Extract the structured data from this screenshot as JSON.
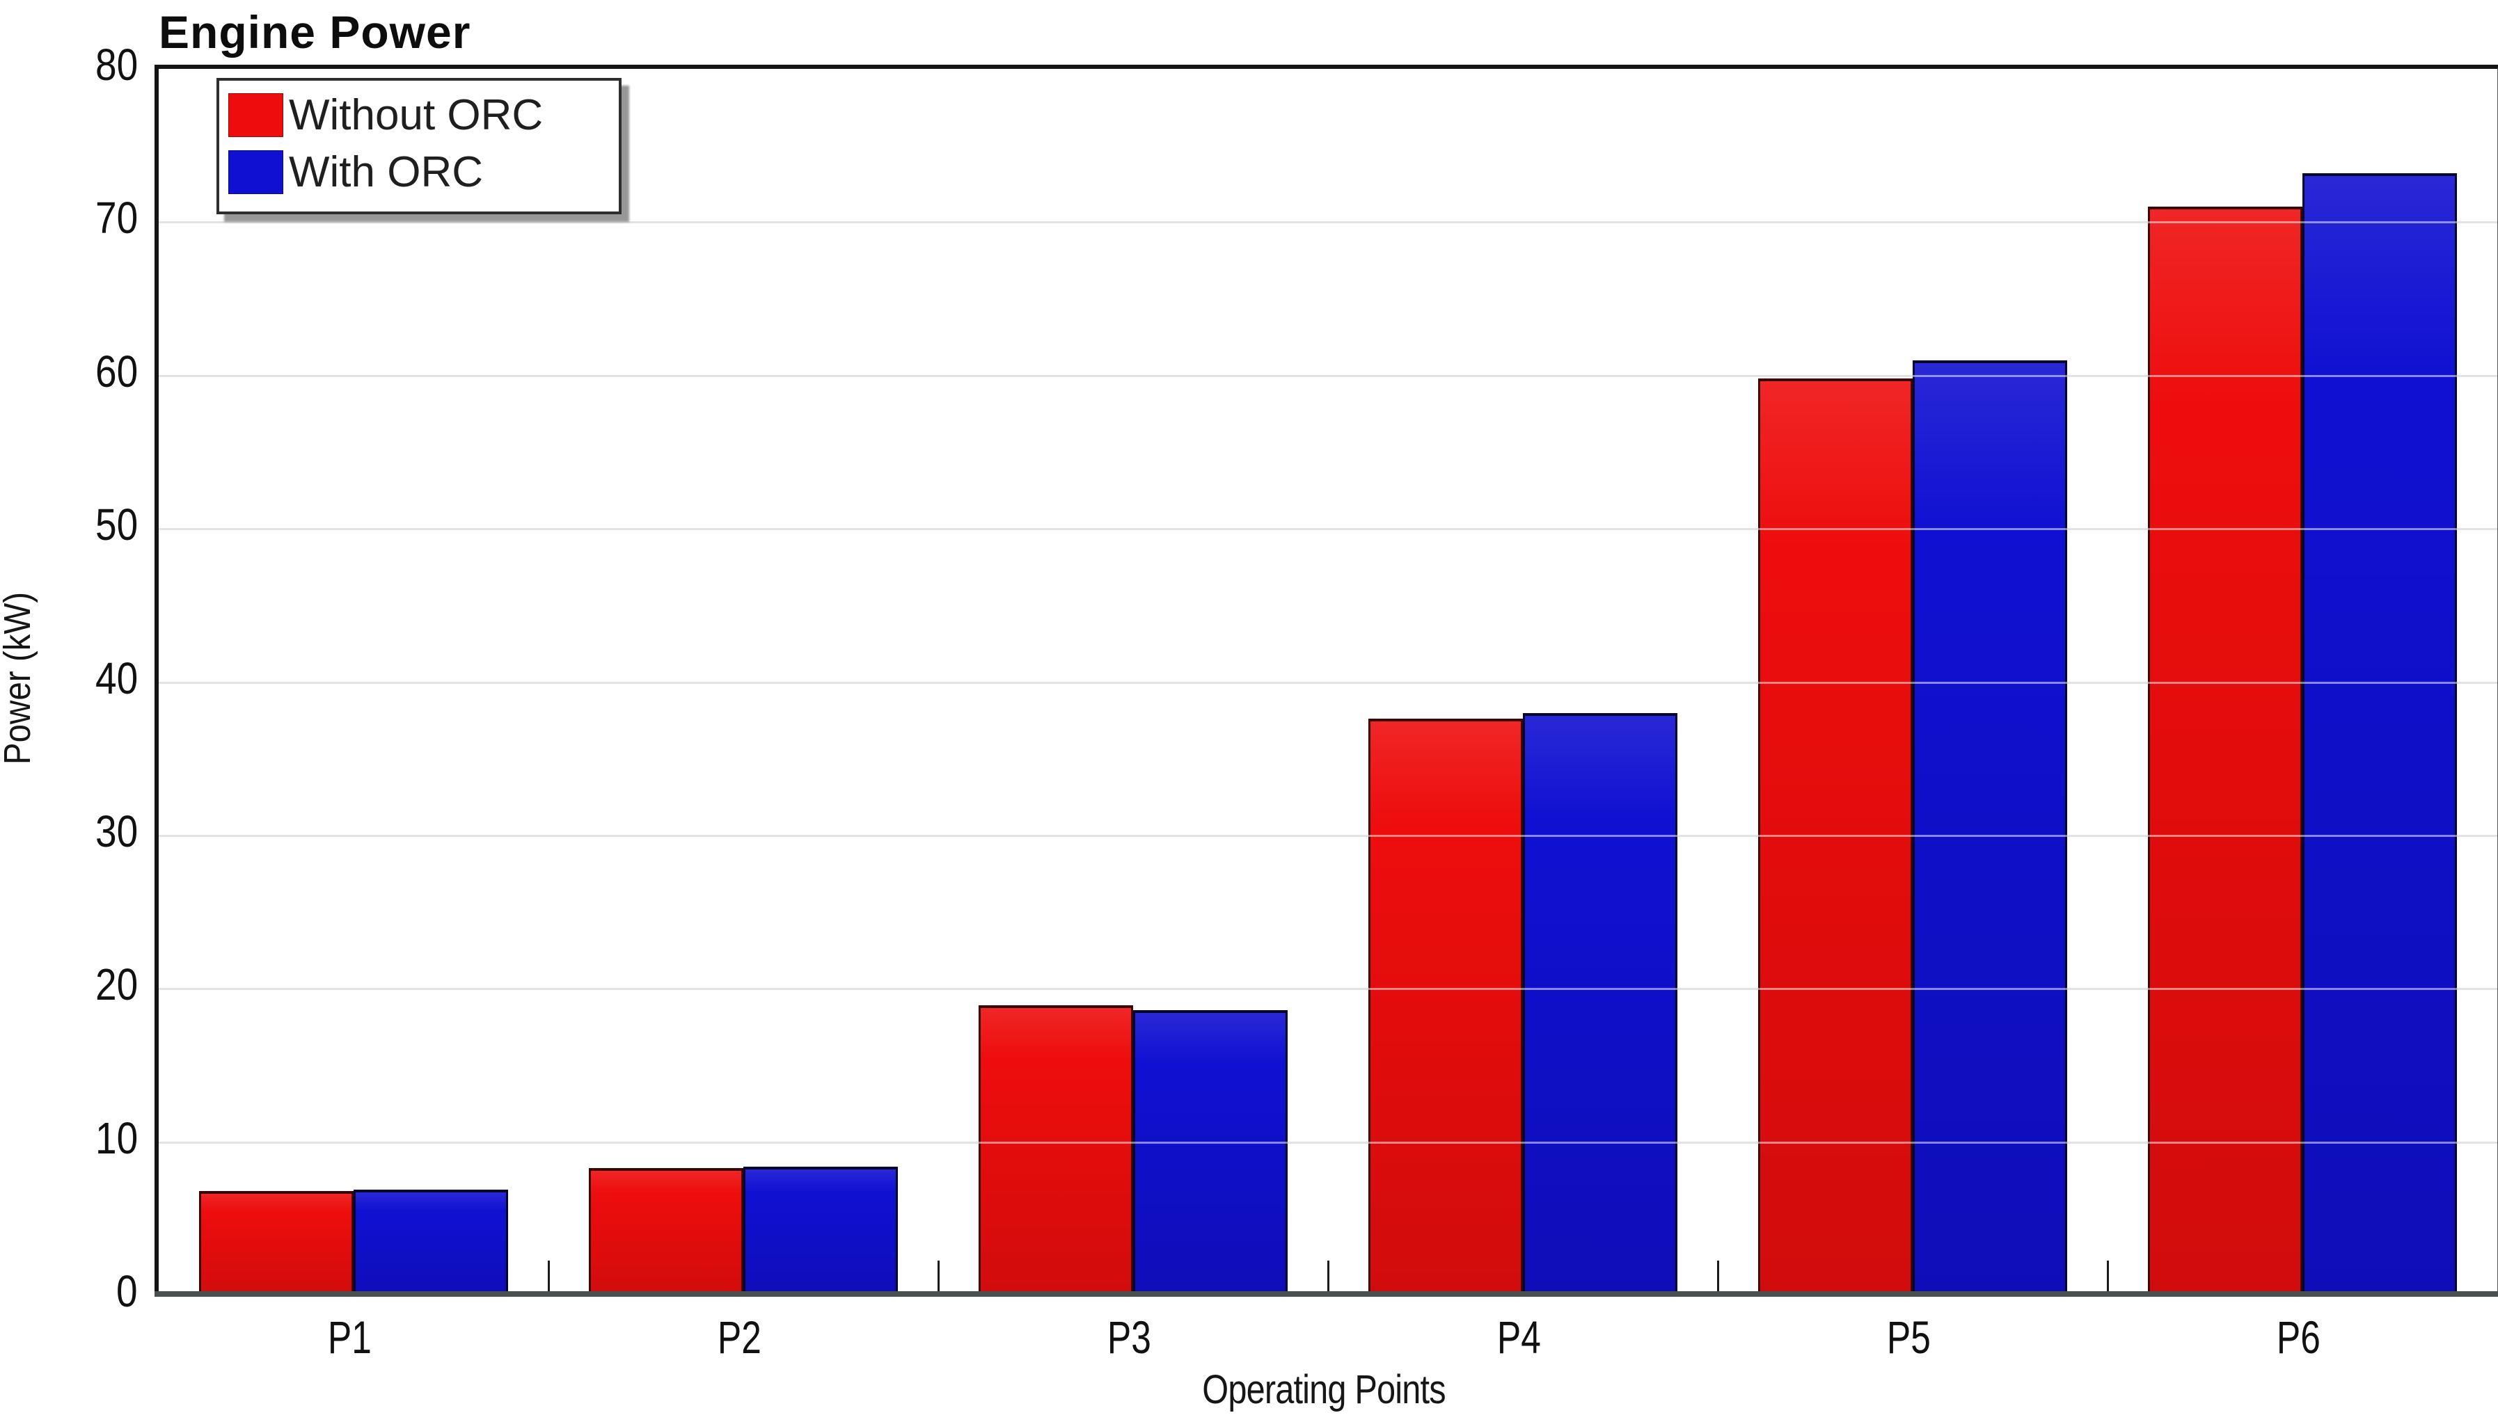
{
  "chart_data": {
    "type": "bar",
    "title": "Engine Power",
    "xlabel": "Operating Points",
    "ylabel": "Power (kW)",
    "categories": [
      "P1",
      "P2",
      "P3",
      "P4",
      "P5",
      "P6"
    ],
    "series": [
      {
        "name": "Without ORC",
        "color": "#ee0d0d",
        "edge_color": "#3a0404",
        "values": [
          6.8,
          8.3,
          18.9,
          37.6,
          59.8,
          71.0
        ]
      },
      {
        "name": "With ORC",
        "color": "#1010d2",
        "edge_color": "#05052e",
        "values": [
          6.9,
          8.4,
          18.6,
          38.0,
          61.0,
          73.2
        ]
      }
    ],
    "ylim": [
      0,
      80
    ],
    "yticks": [
      0,
      10,
      20,
      30,
      40,
      50,
      60,
      70,
      80
    ],
    "grid": true,
    "grid_color": "#c6c6c6",
    "axis_line_color": "#4a4f4f",
    "plot_border_color": "#141414",
    "legend_position": "top-left"
  }
}
